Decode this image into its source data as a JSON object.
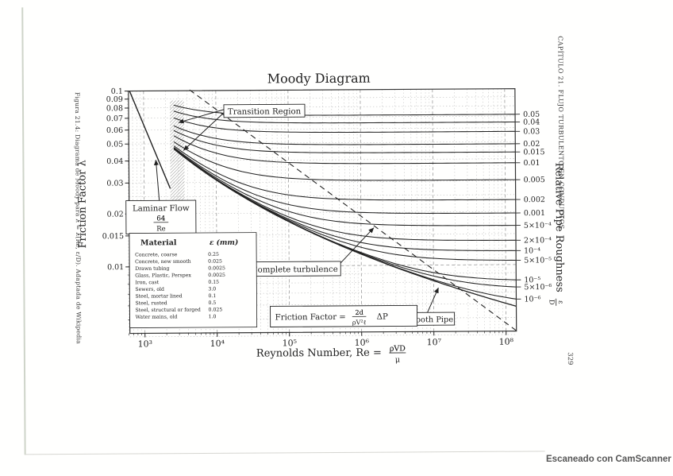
{
  "scan": {
    "footer": "Escaneado con CamScanner",
    "side_caption": "Figura 21.4: Diagrama de Moody para λ = λ(Re, ε/D). Adaptada de Wikipedia",
    "chapter_header": "CAPÍTULO 21. FLUJO TURBULENTO EN CONDUCTOS",
    "page_number": "329"
  },
  "chart_data": {
    "type": "line",
    "title": "Moody Diagram",
    "grid": true,
    "legend_position": "right-edge-labels",
    "x_axis": {
      "label_prefix": "Reynolds Number, Re =",
      "frac_num": "ρVD",
      "frac_den": "μ",
      "scale": "log",
      "range": [
        560,
        126000000
      ],
      "ticks": [
        {
          "re": 1000,
          "label": "10³"
        },
        {
          "re": 10000,
          "label": "10⁴"
        },
        {
          "re": 100000,
          "label": "10⁵"
        },
        {
          "re": 1000000,
          "label": "10⁶"
        },
        {
          "re": 10000000,
          "label": "10⁷"
        },
        {
          "re": 100000000,
          "label": "10⁸"
        }
      ]
    },
    "y_axis": {
      "label": "Friction Factor λ",
      "scale": "log",
      "range": [
        0.0042,
        0.1
      ],
      "ticks": [
        {
          "v": 0.1,
          "label": "0.1"
        },
        {
          "v": 0.09,
          "label": "0.09"
        },
        {
          "v": 0.08,
          "label": "0.08"
        },
        {
          "v": 0.07,
          "label": "0.07"
        },
        {
          "v": 0.06,
          "label": "0.06"
        },
        {
          "v": 0.05,
          "label": "0.05"
        },
        {
          "v": 0.04,
          "label": "0.04"
        },
        {
          "v": 0.03,
          "label": "0.03"
        },
        {
          "v": 0.02,
          "label": "0.02"
        },
        {
          "v": 0.015,
          "label": "0.015"
        },
        {
          "v": 0.01,
          "label": "0.01"
        }
      ],
      "minor_grid": [
        0.09,
        0.08,
        0.07,
        0.06,
        0.05,
        0.04,
        0.03,
        0.025,
        0.02,
        0.015,
        0.009,
        0.008,
        0.007,
        0.006,
        0.005,
        0.004
      ]
    },
    "y2_axis": {
      "label": "Relative Pipe Roughness",
      "frac_num": "ε",
      "frac_den": "D"
    },
    "laminar": {
      "box_label": "Laminar Flow",
      "frac_num": "64",
      "frac_den": "Re",
      "re_start": 640,
      "re_end": 2300
    },
    "transition_label": "Transition Region",
    "complete_turbulence_label": "Complete turbulence",
    "smooth_pipe": {
      "label": "Smooth Pipe",
      "eps_d": 0
    },
    "friction_formula": {
      "prefix": "Friction Factor =",
      "frac_num": "2d",
      "frac_den": "ρV²ℓ",
      "suffix": "ΔP"
    },
    "turbulent_re_start": 2600,
    "roughness_series": [
      {
        "eps_d": 0.05,
        "label": "0.05"
      },
      {
        "eps_d": 0.04,
        "label": "0.04"
      },
      {
        "eps_d": 0.03,
        "label": "0.03"
      },
      {
        "eps_d": 0.02,
        "label": "0.02"
      },
      {
        "eps_d": 0.015,
        "label": "0.015"
      },
      {
        "eps_d": 0.01,
        "label": "0.01"
      },
      {
        "eps_d": 0.005,
        "label": "0.005"
      },
      {
        "eps_d": 0.002,
        "label": "0.002"
      },
      {
        "eps_d": 0.001,
        "label": "0.001"
      },
      {
        "eps_d": 0.0005,
        "label": "5×10⁻⁴"
      },
      {
        "eps_d": 0.0002,
        "label": "2×10⁻⁴"
      },
      {
        "eps_d": 0.0001,
        "label": "10⁻⁴"
      },
      {
        "eps_d": 5e-05,
        "label": "5×10⁻⁵"
      },
      {
        "eps_d": 1e-05,
        "label": "10⁻⁵"
      },
      {
        "eps_d": 5e-06,
        "label": "5×10⁻⁶"
      },
      {
        "eps_d": 1e-06,
        "label": "10⁻⁶"
      }
    ],
    "materials_table": {
      "header": [
        "Material",
        "ε (mm)"
      ],
      "rows": [
        [
          "Concrete, coarse",
          "0.25"
        ],
        [
          "Concrete, new smooth",
          "0.025"
        ],
        [
          "Drawn tubing",
          "0.0025"
        ],
        [
          "Glass, Plastic, Perspex",
          "0.0025"
        ],
        [
          "Iron, cast",
          "0.15"
        ],
        [
          "Sewers, old",
          "3.0"
        ],
        [
          "Steel, mortar lined",
          "0.1"
        ],
        [
          "Steel, rusted",
          "0.5"
        ],
        [
          "Steel, structural or forged",
          "0.025"
        ],
        [
          "Water mains, old",
          "1.0"
        ]
      ]
    }
  }
}
